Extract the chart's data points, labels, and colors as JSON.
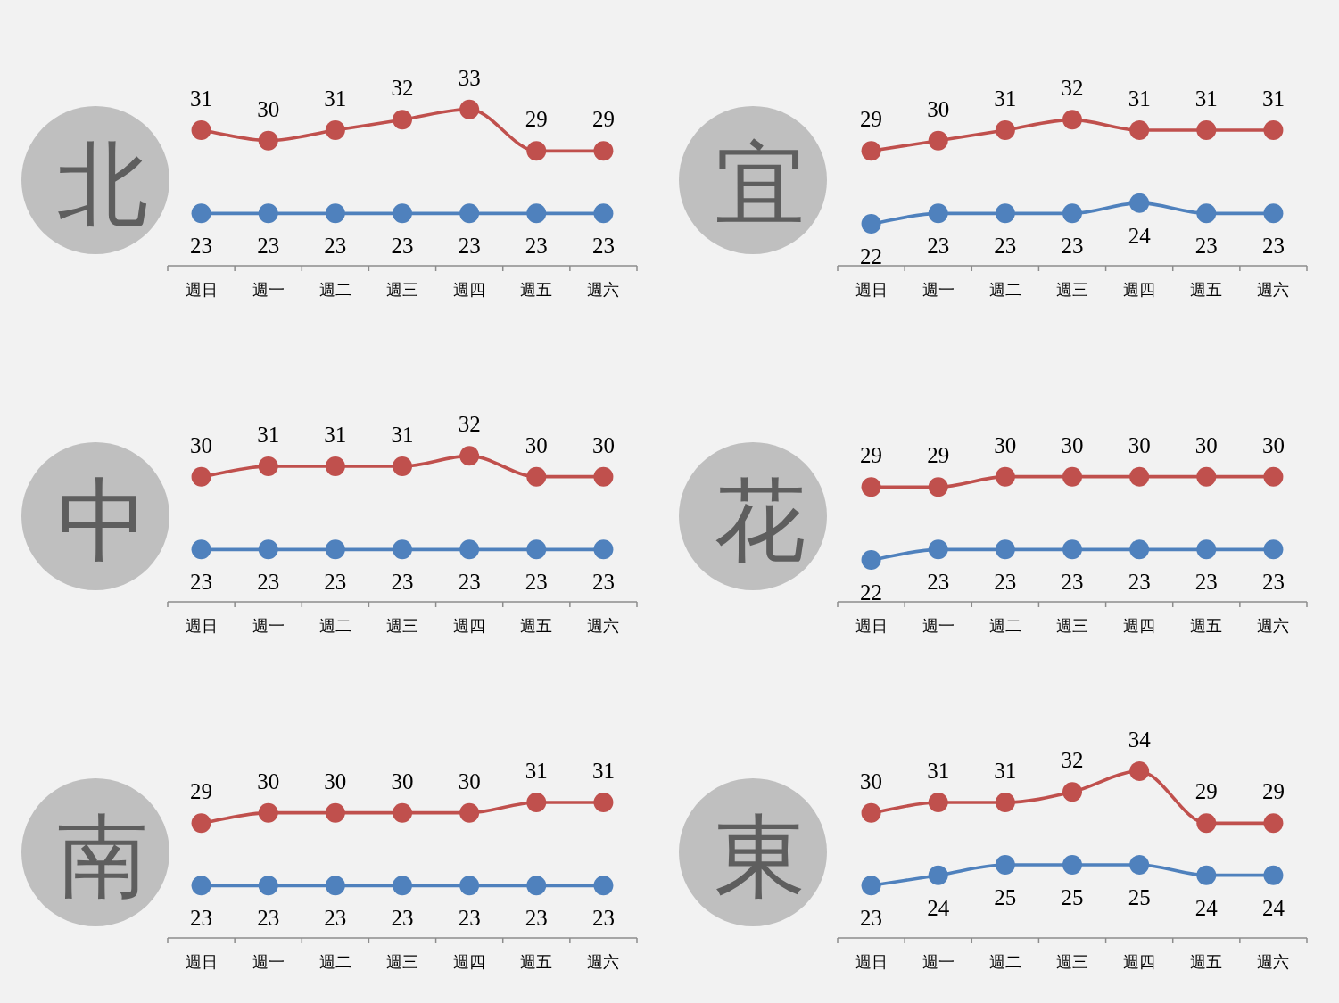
{
  "chart_data": [
    {
      "type": "line",
      "title": "北",
      "categories": [
        "週日",
        "週一",
        "週二",
        "週三",
        "週四",
        "週五",
        "週六"
      ],
      "series": [
        {
          "color": "#c0504d",
          "values": [
            31,
            30,
            31,
            32,
            33,
            29,
            29
          ]
        },
        {
          "color": "#4f81bd",
          "values": [
            23,
            23,
            23,
            23,
            23,
            23,
            23
          ]
        }
      ],
      "data_labels": true,
      "marker": "circle",
      "tick_labels": "x"
    },
    {
      "type": "line",
      "title": "宜",
      "categories": [
        "週日",
        "週一",
        "週二",
        "週三",
        "週四",
        "週五",
        "週六"
      ],
      "series": [
        {
          "color": "#c0504d",
          "values": [
            29,
            30,
            31,
            32,
            31,
            31,
            31
          ]
        },
        {
          "color": "#4f81bd",
          "values": [
            22,
            23,
            23,
            23,
            24,
            23,
            23
          ]
        }
      ],
      "data_labels": true,
      "marker": "circle",
      "tick_labels": "x"
    },
    {
      "type": "line",
      "title": "中",
      "categories": [
        "週日",
        "週一",
        "週二",
        "週三",
        "週四",
        "週五",
        "週六"
      ],
      "series": [
        {
          "color": "#c0504d",
          "values": [
            30,
            31,
            31,
            31,
            32,
            30,
            30
          ]
        },
        {
          "color": "#4f81bd",
          "values": [
            23,
            23,
            23,
            23,
            23,
            23,
            23
          ]
        }
      ],
      "data_labels": true,
      "marker": "circle",
      "tick_labels": "x"
    },
    {
      "type": "line",
      "title": "花",
      "categories": [
        "週日",
        "週一",
        "週二",
        "週三",
        "週四",
        "週五",
        "週六"
      ],
      "series": [
        {
          "color": "#c0504d",
          "values": [
            29,
            29,
            30,
            30,
            30,
            30,
            30
          ]
        },
        {
          "color": "#4f81bd",
          "values": [
            22,
            23,
            23,
            23,
            23,
            23,
            23
          ]
        }
      ],
      "data_labels": true,
      "marker": "circle",
      "tick_labels": "x"
    },
    {
      "type": "line",
      "title": "南",
      "categories": [
        "週日",
        "週一",
        "週二",
        "週三",
        "週四",
        "週五",
        "週六"
      ],
      "series": [
        {
          "color": "#c0504d",
          "values": [
            29,
            30,
            30,
            30,
            30,
            31,
            31
          ]
        },
        {
          "color": "#4f81bd",
          "values": [
            23,
            23,
            23,
            23,
            23,
            23,
            23
          ]
        }
      ],
      "data_labels": true,
      "marker": "circle",
      "tick_labels": "x"
    },
    {
      "type": "line",
      "title": "東",
      "categories": [
        "週日",
        "週一",
        "週二",
        "週三",
        "週四",
        "週五",
        "週六"
      ],
      "series": [
        {
          "color": "#c0504d",
          "values": [
            30,
            31,
            31,
            32,
            34,
            29,
            29
          ]
        },
        {
          "color": "#4f81bd",
          "values": [
            23,
            24,
            25,
            25,
            25,
            24,
            24
          ]
        }
      ],
      "data_labels": true,
      "marker": "circle",
      "tick_labels": "x"
    }
  ]
}
